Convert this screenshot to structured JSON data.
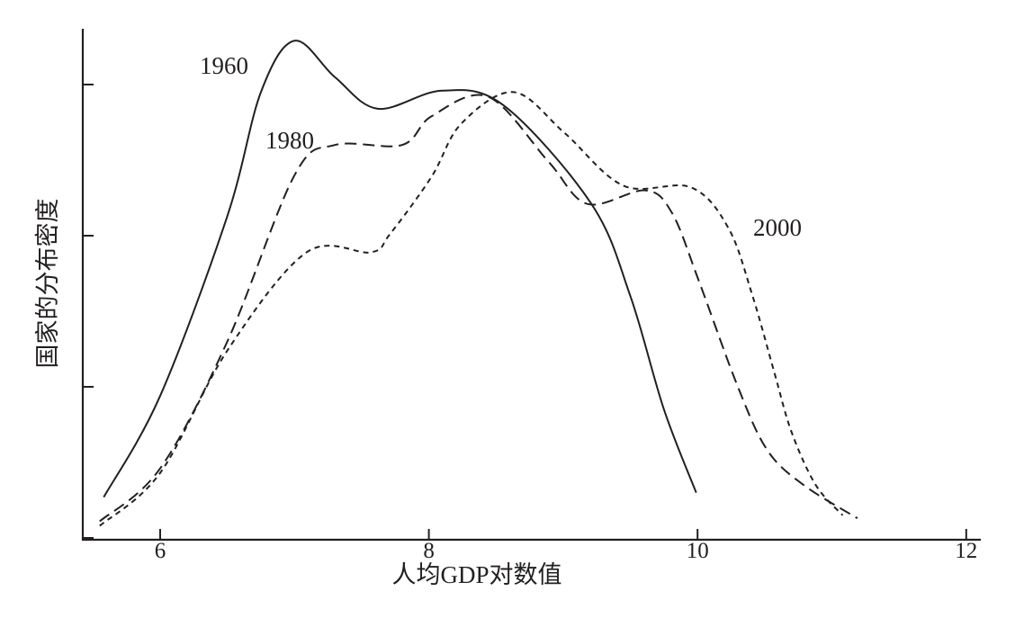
{
  "chart_data": {
    "type": "line",
    "title": "",
    "xlabel": "人均GDP对数值",
    "ylabel": "国家的分布密度",
    "xlim": [
      5.45,
      12.05
    ],
    "ylim": [
      0,
      3.4
    ],
    "xticks": [
      6,
      8,
      10,
      12
    ],
    "xtick_labels": [
      "6",
      "8",
      "10",
      "12"
    ],
    "yticks": [
      0,
      1,
      2,
      3
    ],
    "ytick_labels_shown": false,
    "grid": false,
    "legend": "none (inline labels)",
    "series": [
      {
        "name": "1960",
        "style": "solid",
        "points": [
          [
            5.58,
            0.27
          ],
          [
            6.0,
            0.94
          ],
          [
            6.5,
            2.13
          ],
          [
            6.75,
            2.95
          ],
          [
            7.0,
            3.29
          ],
          [
            7.3,
            3.05
          ],
          [
            7.62,
            2.84
          ],
          [
            8.1,
            2.96
          ],
          [
            8.56,
            2.86
          ],
          [
            9.21,
            2.21
          ],
          [
            9.5,
            1.6
          ],
          [
            9.75,
            0.85
          ],
          [
            9.99,
            0.3
          ]
        ]
      },
      {
        "name": "1980",
        "style": "long-dash",
        "points": [
          [
            5.55,
            0.11
          ],
          [
            6.0,
            0.46
          ],
          [
            6.5,
            1.3
          ],
          [
            7.0,
            2.4
          ],
          [
            7.3,
            2.6
          ],
          [
            7.8,
            2.6
          ],
          [
            8.02,
            2.79
          ],
          [
            8.44,
            2.92
          ],
          [
            8.89,
            2.49
          ],
          [
            9.18,
            2.21
          ],
          [
            9.61,
            2.3
          ],
          [
            9.81,
            2.15
          ],
          [
            10.01,
            1.7
          ],
          [
            10.3,
            1.0
          ],
          [
            10.52,
            0.58
          ],
          [
            10.79,
            0.35
          ],
          [
            11.19,
            0.13
          ]
        ]
      },
      {
        "name": "2000",
        "style": "short-dash",
        "points": [
          [
            5.55,
            0.08
          ],
          [
            6.0,
            0.43
          ],
          [
            6.5,
            1.24
          ],
          [
            7.09,
            1.89
          ],
          [
            7.57,
            1.89
          ],
          [
            7.71,
            2.01
          ],
          [
            8.02,
            2.39
          ],
          [
            8.24,
            2.74
          ],
          [
            8.63,
            2.95
          ],
          [
            9.01,
            2.68
          ],
          [
            9.45,
            2.33
          ],
          [
            9.95,
            2.32
          ],
          [
            10.23,
            2.05
          ],
          [
            10.41,
            1.6
          ],
          [
            10.57,
            1.1
          ],
          [
            10.7,
            0.7
          ],
          [
            10.88,
            0.35
          ],
          [
            11.08,
            0.15
          ]
        ]
      }
    ],
    "colors": {
      "line": "#231f20"
    }
  }
}
